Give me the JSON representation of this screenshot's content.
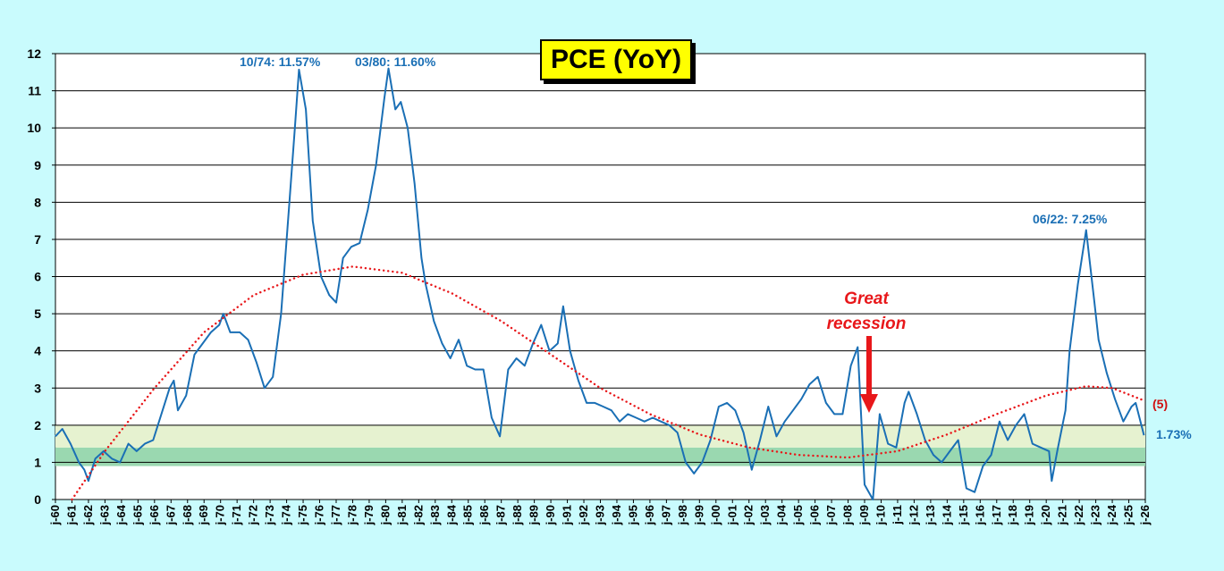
{
  "chart_data": {
    "type": "line",
    "title": "PCE (YoY)",
    "ylim": [
      0,
      12
    ],
    "yticks": [
      "0",
      "1",
      "2",
      "3",
      "4",
      "5",
      "6",
      "7",
      "8",
      "9",
      "10",
      "11",
      "12"
    ],
    "xlim": [
      "1960-01",
      "2026-01"
    ],
    "xticks": [
      "j-60",
      "j-61",
      "j-62",
      "j-63",
      "j-64",
      "j-65",
      "j-66",
      "j-67",
      "j-68",
      "j-69",
      "j-70",
      "j-71",
      "j-72",
      "j-73",
      "j-74",
      "j-75",
      "j-76",
      "j-77",
      "j-78",
      "j-79",
      "j-80",
      "j-81",
      "j-82",
      "j-83",
      "j-84",
      "j-85",
      "j-86",
      "j-87",
      "j-88",
      "j-89",
      "j-90",
      "j-91",
      "j-92",
      "j-93",
      "j-94",
      "j-95",
      "j-96",
      "j-97",
      "j-98",
      "j-99",
      "j-00",
      "j-01",
      "j-02",
      "j-03",
      "j-04",
      "j-05",
      "j-06",
      "j-07",
      "j-08",
      "j-09",
      "j-10",
      "j-11",
      "j-12",
      "j-13",
      "j-14",
      "j-15",
      "j-16",
      "j-17",
      "j-18",
      "j-19",
      "j-20",
      "j-21",
      "j-22",
      "j-23",
      "j-24",
      "j-25",
      "j-26"
    ],
    "grid": "horizontal",
    "bands": [
      {
        "from": 0.9,
        "to": 1.4,
        "color": "#9ad8b0"
      },
      {
        "from": 1.4,
        "to": 2.0,
        "color": "#e6f2d0"
      }
    ],
    "series": [
      {
        "color": "#1a6fb5",
        "points": [
          [
            "1960-01",
            1.7
          ],
          [
            "1960-06",
            1.9
          ],
          [
            "1960-12",
            1.5
          ],
          [
            "1961-06",
            1.0
          ],
          [
            "1961-10",
            0.8
          ],
          [
            "1962-01",
            0.5
          ],
          [
            "1962-06",
            1.1
          ],
          [
            "1962-12",
            1.3
          ],
          [
            "1963-06",
            1.1
          ],
          [
            "1963-12",
            1.0
          ],
          [
            "1964-06",
            1.5
          ],
          [
            "1964-12",
            1.3
          ],
          [
            "1965-06",
            1.5
          ],
          [
            "1965-12",
            1.6
          ],
          [
            "1966-06",
            2.3
          ],
          [
            "1966-12",
            3.0
          ],
          [
            "1967-03",
            3.2
          ],
          [
            "1967-06",
            2.4
          ],
          [
            "1967-12",
            2.8
          ],
          [
            "1968-06",
            3.9
          ],
          [
            "1968-12",
            4.2
          ],
          [
            "1969-06",
            4.5
          ],
          [
            "1969-12",
            4.7
          ],
          [
            "1970-03",
            5.0
          ],
          [
            "1970-08",
            4.5
          ],
          [
            "1971-03",
            4.5
          ],
          [
            "1971-09",
            4.3
          ],
          [
            "1972-03",
            3.7
          ],
          [
            "1972-09",
            3.0
          ],
          [
            "1973-03",
            3.3
          ],
          [
            "1973-09",
            5.0
          ],
          [
            "1974-03",
            8.0
          ],
          [
            "1974-07",
            10.0
          ],
          [
            "1974-10",
            11.57
          ],
          [
            "1975-03",
            10.5
          ],
          [
            "1975-08",
            7.5
          ],
          [
            "1976-02",
            6.0
          ],
          [
            "1976-08",
            5.5
          ],
          [
            "1977-01",
            5.3
          ],
          [
            "1977-06",
            6.5
          ],
          [
            "1977-12",
            6.8
          ],
          [
            "1978-06",
            6.9
          ],
          [
            "1978-12",
            7.8
          ],
          [
            "1979-06",
            9.0
          ],
          [
            "1979-12",
            10.8
          ],
          [
            "1980-03",
            11.6
          ],
          [
            "1980-08",
            10.5
          ],
          [
            "1980-12",
            10.7
          ],
          [
            "1981-05",
            10.0
          ],
          [
            "1981-10",
            8.5
          ],
          [
            "1982-03",
            6.5
          ],
          [
            "1982-06",
            5.8
          ],
          [
            "1982-12",
            4.8
          ],
          [
            "1983-06",
            4.2
          ],
          [
            "1983-12",
            3.8
          ],
          [
            "1984-06",
            4.3
          ],
          [
            "1984-12",
            3.6
          ],
          [
            "1985-06",
            3.5
          ],
          [
            "1985-12",
            3.5
          ],
          [
            "1986-06",
            2.2
          ],
          [
            "1986-12",
            1.7
          ],
          [
            "1987-06",
            3.5
          ],
          [
            "1987-12",
            3.8
          ],
          [
            "1988-06",
            3.6
          ],
          [
            "1988-12",
            4.2
          ],
          [
            "1989-06",
            4.7
          ],
          [
            "1989-12",
            4.0
          ],
          [
            "1990-06",
            4.2
          ],
          [
            "1990-10",
            5.2
          ],
          [
            "1991-03",
            4.0
          ],
          [
            "1991-09",
            3.2
          ],
          [
            "1992-03",
            2.6
          ],
          [
            "1992-09",
            2.6
          ],
          [
            "1993-03",
            2.5
          ],
          [
            "1993-09",
            2.4
          ],
          [
            "1994-03",
            2.1
          ],
          [
            "1994-09",
            2.3
          ],
          [
            "1995-03",
            2.2
          ],
          [
            "1995-09",
            2.1
          ],
          [
            "1996-03",
            2.2
          ],
          [
            "1996-09",
            2.1
          ],
          [
            "1997-03",
            2.0
          ],
          [
            "1997-09",
            1.8
          ],
          [
            "1998-03",
            1.0
          ],
          [
            "1998-09",
            0.7
          ],
          [
            "1999-03",
            1.0
          ],
          [
            "1999-09",
            1.6
          ],
          [
            "2000-03",
            2.5
          ],
          [
            "2000-09",
            2.6
          ],
          [
            "2001-03",
            2.4
          ],
          [
            "2001-09",
            1.8
          ],
          [
            "2002-03",
            0.8
          ],
          [
            "2002-09",
            1.6
          ],
          [
            "2003-03",
            2.5
          ],
          [
            "2003-09",
            1.7
          ],
          [
            "2004-03",
            2.1
          ],
          [
            "2004-09",
            2.4
          ],
          [
            "2005-03",
            2.7
          ],
          [
            "2005-09",
            3.1
          ],
          [
            "2006-03",
            3.3
          ],
          [
            "2006-09",
            2.6
          ],
          [
            "2007-03",
            2.3
          ],
          [
            "2007-09",
            2.3
          ],
          [
            "2008-03",
            3.6
          ],
          [
            "2008-08",
            4.1
          ],
          [
            "2009-01",
            0.4
          ],
          [
            "2009-07",
            -0.4
          ],
          [
            "2009-12",
            2.3
          ],
          [
            "2010-06",
            1.5
          ],
          [
            "2010-12",
            1.4
          ],
          [
            "2011-06",
            2.6
          ],
          [
            "2011-09",
            2.9
          ],
          [
            "2012-03",
            2.3
          ],
          [
            "2012-09",
            1.6
          ],
          [
            "2013-03",
            1.2
          ],
          [
            "2013-09",
            1.0
          ],
          [
            "2014-03",
            1.3
          ],
          [
            "2014-09",
            1.6
          ],
          [
            "2015-03",
            0.3
          ],
          [
            "2015-09",
            0.2
          ],
          [
            "2016-03",
            0.9
          ],
          [
            "2016-09",
            1.2
          ],
          [
            "2017-03",
            2.1
          ],
          [
            "2017-09",
            1.6
          ],
          [
            "2018-03",
            2.0
          ],
          [
            "2018-09",
            2.3
          ],
          [
            "2019-03",
            1.5
          ],
          [
            "2019-09",
            1.4
          ],
          [
            "2020-03",
            1.3
          ],
          [
            "2020-05",
            0.5
          ],
          [
            "2020-09",
            1.3
          ],
          [
            "2021-03",
            2.4
          ],
          [
            "2021-06",
            4.0
          ],
          [
            "2021-12",
            5.8
          ],
          [
            "2022-06",
            7.25
          ],
          [
            "2022-12",
            5.3
          ],
          [
            "2023-03",
            4.3
          ],
          [
            "2023-09",
            3.4
          ],
          [
            "2024-03",
            2.7
          ],
          [
            "2024-09",
            2.1
          ],
          [
            "2025-03",
            2.5
          ],
          [
            "2025-06",
            2.6
          ],
          [
            "2025-12",
            1.73
          ]
        ]
      },
      {
        "style": "dotted",
        "color": "#e8171a",
        "points": [
          [
            "1961-01",
            0.0
          ],
          [
            "1963-01",
            1.3
          ],
          [
            "1966-01",
            3.0
          ],
          [
            "1969-01",
            4.5
          ],
          [
            "1972-01",
            5.5
          ],
          [
            "1975-01",
            6.05
          ],
          [
            "1978-01",
            6.27
          ],
          [
            "1981-01",
            6.1
          ],
          [
            "1984-01",
            5.55
          ],
          [
            "1987-01",
            4.8
          ],
          [
            "1990-01",
            3.9
          ],
          [
            "1993-01",
            3.0
          ],
          [
            "1996-01",
            2.3
          ],
          [
            "1999-01",
            1.75
          ],
          [
            "2002-01",
            1.4
          ],
          [
            "2005-01",
            1.2
          ],
          [
            "2008-01",
            1.13
          ],
          [
            "2011-01",
            1.3
          ],
          [
            "2014-01",
            1.75
          ],
          [
            "2017-01",
            2.3
          ],
          [
            "2020-01",
            2.8
          ],
          [
            "2022-06",
            3.05
          ],
          [
            "2024-01",
            3.0
          ],
          [
            "2026-01",
            2.65
          ]
        ]
      }
    ],
    "annotations": {
      "peak_74": "10/74: 11.57%",
      "peak_80": "03/80: 11.60%",
      "peak_22": "06/22: 7.25%",
      "last_value": "1.73%",
      "trend_label": "(5)",
      "great_recession_line1": "Great",
      "great_recession_line2": "recession"
    }
  }
}
